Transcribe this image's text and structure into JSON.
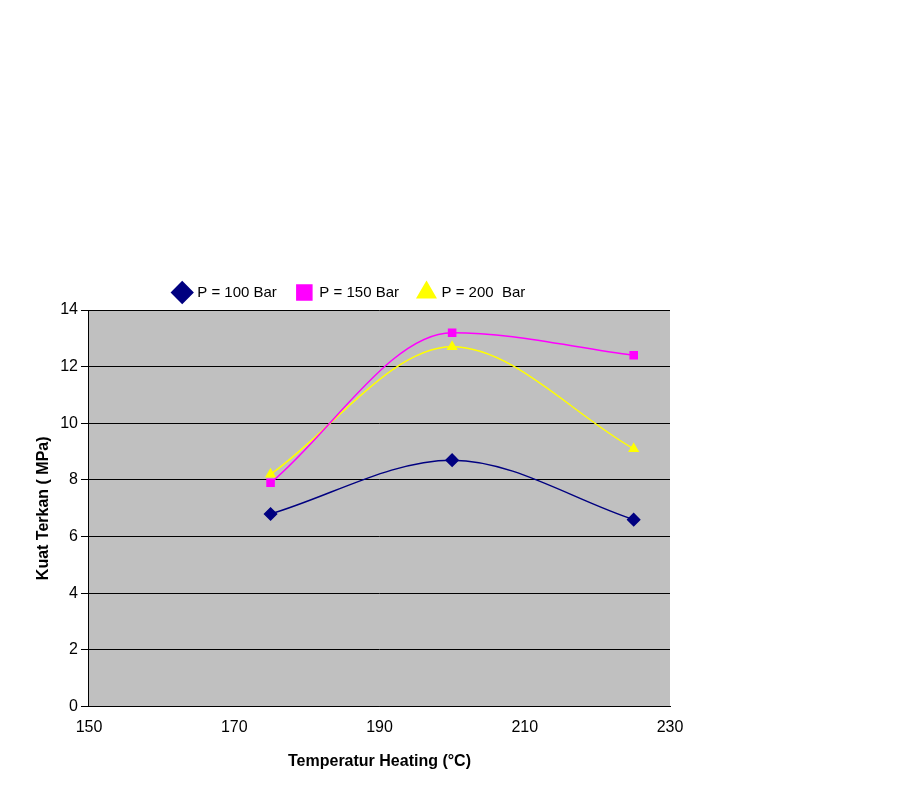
{
  "chart_data": {
    "type": "line",
    "x_label": "Temperatur Heating (°C)",
    "y_label": "Kuat Terkan ( MPa)",
    "x": [
      175,
      200,
      225
    ],
    "series": [
      {
        "name": "P = 100 Bar",
        "color": "#000080",
        "marker": "diamond",
        "line_style": "solid",
        "values": [
          6.8,
          8.7,
          6.6
        ]
      },
      {
        "name": "P = 150 Bar",
        "color": "#ff00ff",
        "marker": "square",
        "line_style": "solid",
        "values": [
          7.9,
          13.2,
          12.4
        ]
      },
      {
        "name": "P = 200  Bar",
        "color": "#ffff00",
        "marker": "triangle",
        "line_style": "solid",
        "values": [
          8.2,
          12.7,
          9.1
        ]
      }
    ],
    "xlim": [
      150,
      230
    ],
    "xticks": [
      150,
      170,
      190,
      210,
      230
    ],
    "ylim": [
      0,
      14
    ],
    "yticks": [
      0,
      2,
      4,
      6,
      8,
      10,
      12,
      14
    ],
    "grid": true,
    "legend": "top"
  }
}
